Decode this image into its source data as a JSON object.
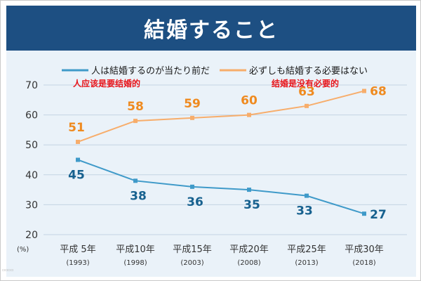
{
  "header": {
    "title": "結婚すること"
  },
  "annotations": {
    "series1_cn": "人应该是要结婚的",
    "series2_cn": "结婚是没有必要的"
  },
  "unit_label": "(%)",
  "colors": {
    "title_bg": "#1d4f82",
    "plot_bg": "#eaf2f9",
    "series1": "#3f9ac9",
    "series2": "#f7ad6b",
    "label1": "#17618f",
    "label2": "#ef8a1f",
    "note": "#e8151b"
  },
  "chart_data": {
    "type": "line",
    "title": "結婚すること",
    "categories": [
      {
        "era": "平成 5年",
        "year": "(1993)"
      },
      {
        "era": "平成10年",
        "year": "(1998)"
      },
      {
        "era": "平成15年",
        "year": "(2003)"
      },
      {
        "era": "平成20年",
        "year": "(2008)"
      },
      {
        "era": "平成25年",
        "year": "(2013)"
      },
      {
        "era": "平成30年",
        "year": "(2018)"
      }
    ],
    "series": [
      {
        "name": "人は結婚するのが当たり前だ",
        "values": [
          45,
          38,
          36,
          35,
          33,
          27
        ]
      },
      {
        "name": "必ずしも結婚する必要はない",
        "values": [
          51,
          58,
          59,
          60,
          63,
          68
        ]
      }
    ],
    "ylim": [
      20,
      70
    ],
    "yticks": [
      20,
      30,
      40,
      50,
      60,
      70
    ],
    "ylabel": "(%)",
    "grid": true,
    "legend": "top"
  }
}
